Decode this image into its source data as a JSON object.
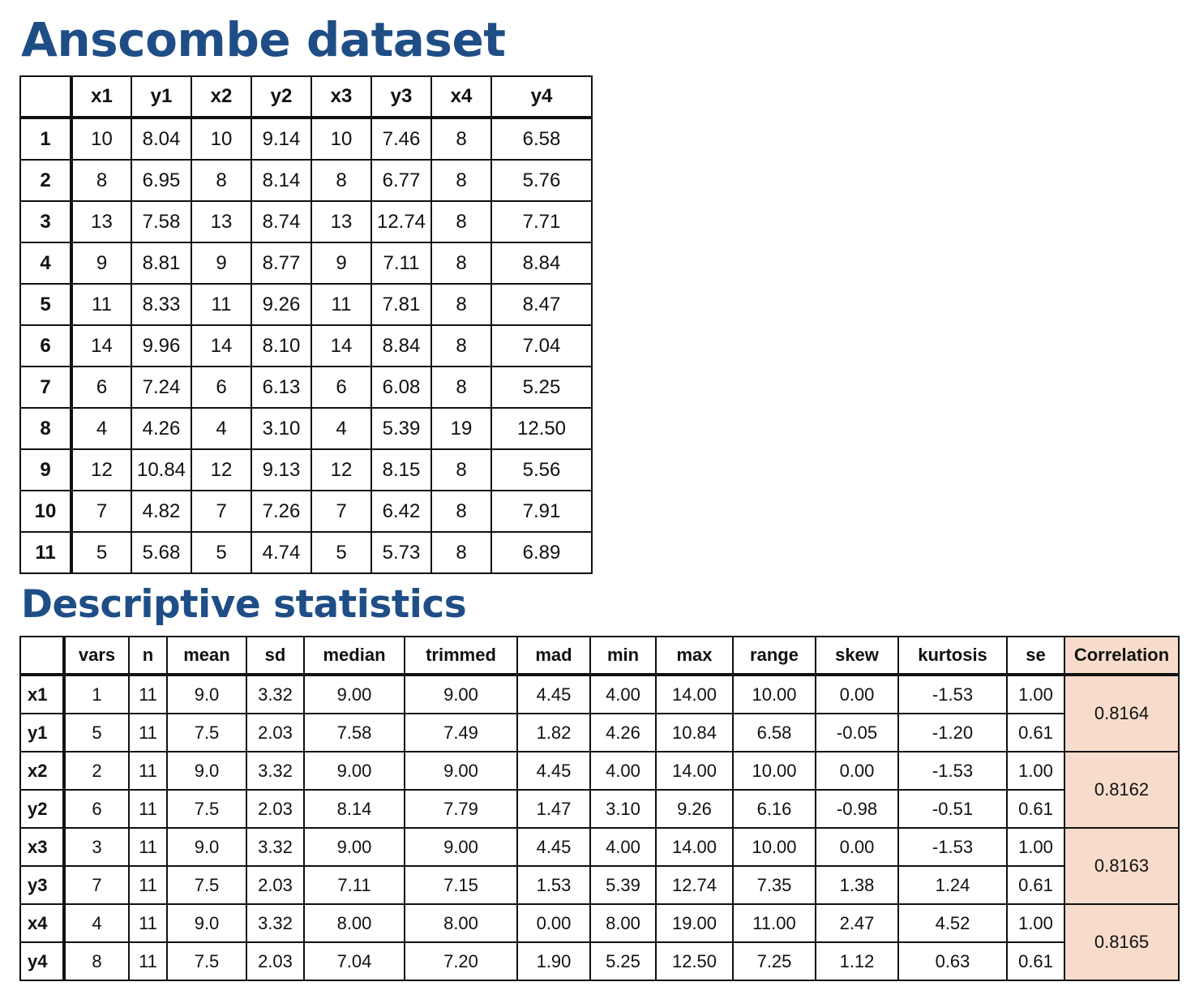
{
  "titles": {
    "dataset": "Anscombe dataset",
    "stats": "Descriptive statistics"
  },
  "colors": {
    "title": "#1f4e86",
    "correlation_bg": "#f8dccb"
  },
  "anscombe": {
    "columns": [
      "x1",
      "y1",
      "x2",
      "y2",
      "x3",
      "y3",
      "x4",
      "y4"
    ],
    "rows": [
      {
        "label": "1",
        "cells": [
          "10",
          "8.04",
          "10",
          "9.14",
          "10",
          "7.46",
          "8",
          "6.58"
        ]
      },
      {
        "label": "2",
        "cells": [
          "8",
          "6.95",
          "8",
          "8.14",
          "8",
          "6.77",
          "8",
          "5.76"
        ]
      },
      {
        "label": "3",
        "cells": [
          "13",
          "7.58",
          "13",
          "8.74",
          "13",
          "12.74",
          "8",
          "7.71"
        ]
      },
      {
        "label": "4",
        "cells": [
          "9",
          "8.81",
          "9",
          "8.77",
          "9",
          "7.11",
          "8",
          "8.84"
        ]
      },
      {
        "label": "5",
        "cells": [
          "11",
          "8.33",
          "11",
          "9.26",
          "11",
          "7.81",
          "8",
          "8.47"
        ]
      },
      {
        "label": "6",
        "cells": [
          "14",
          "9.96",
          "14",
          "8.10",
          "14",
          "8.84",
          "8",
          "7.04"
        ]
      },
      {
        "label": "7",
        "cells": [
          "6",
          "7.24",
          "6",
          "6.13",
          "6",
          "6.08",
          "8",
          "5.25"
        ]
      },
      {
        "label": "8",
        "cells": [
          "4",
          "4.26",
          "4",
          "3.10",
          "4",
          "5.39",
          "19",
          "12.50"
        ]
      },
      {
        "label": "9",
        "cells": [
          "12",
          "10.84",
          "12",
          "9.13",
          "12",
          "8.15",
          "8",
          "5.56"
        ]
      },
      {
        "label": "10",
        "cells": [
          "7",
          "4.82",
          "7",
          "7.26",
          "7",
          "6.42",
          "8",
          "7.91"
        ]
      },
      {
        "label": "11",
        "cells": [
          "5",
          "5.68",
          "5",
          "4.74",
          "5",
          "5.73",
          "8",
          "6.89"
        ]
      }
    ]
  },
  "stats": {
    "columns": [
      "vars",
      "n",
      "mean",
      "sd",
      "median",
      "trimmed",
      "mad",
      "min",
      "max",
      "range",
      "skew",
      "kurtosis",
      "se"
    ],
    "correlation_header": "Correlation",
    "rows": [
      {
        "label": "x1",
        "cells": [
          "1",
          "11",
          "9.0",
          "3.32",
          "9.00",
          "9.00",
          "4.45",
          "4.00",
          "14.00",
          "10.00",
          "0.00",
          "-1.53",
          "1.00"
        ]
      },
      {
        "label": "y1",
        "cells": [
          "5",
          "11",
          "7.5",
          "2.03",
          "7.58",
          "7.49",
          "1.82",
          "4.26",
          "10.84",
          "6.58",
          "-0.05",
          "-1.20",
          "0.61"
        ]
      },
      {
        "label": "x2",
        "cells": [
          "2",
          "11",
          "9.0",
          "3.32",
          "9.00",
          "9.00",
          "4.45",
          "4.00",
          "14.00",
          "10.00",
          "0.00",
          "-1.53",
          "1.00"
        ]
      },
      {
        "label": "y2",
        "cells": [
          "6",
          "11",
          "7.5",
          "2.03",
          "8.14",
          "7.79",
          "1.47",
          "3.10",
          "9.26",
          "6.16",
          "-0.98",
          "-0.51",
          "0.61"
        ]
      },
      {
        "label": "x3",
        "cells": [
          "3",
          "11",
          "9.0",
          "3.32",
          "9.00",
          "9.00",
          "4.45",
          "4.00",
          "14.00",
          "10.00",
          "0.00",
          "-1.53",
          "1.00"
        ]
      },
      {
        "label": "y3",
        "cells": [
          "7",
          "11",
          "7.5",
          "2.03",
          "7.11",
          "7.15",
          "1.53",
          "5.39",
          "12.74",
          "7.35",
          "1.38",
          "1.24",
          "0.61"
        ]
      },
      {
        "label": "x4",
        "cells": [
          "4",
          "11",
          "9.0",
          "3.32",
          "8.00",
          "8.00",
          "0.00",
          "8.00",
          "19.00",
          "11.00",
          "2.47",
          "4.52",
          "1.00"
        ]
      },
      {
        "label": "y4",
        "cells": [
          "8",
          "11",
          "7.5",
          "2.03",
          "7.04",
          "7.20",
          "1.90",
          "5.25",
          "12.50",
          "7.25",
          "1.12",
          "0.63",
          "0.61"
        ]
      }
    ],
    "correlations": [
      "0.8164",
      "0.8162",
      "0.8163",
      "0.8165"
    ]
  }
}
